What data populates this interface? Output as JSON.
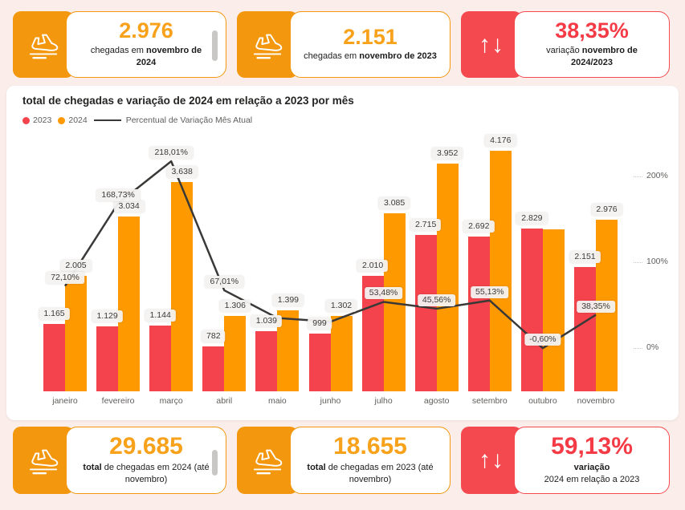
{
  "colors": {
    "page_bg": "#FBEEEA",
    "panel_bg": "#FFFFFF",
    "accent_orange": "#F2970E",
    "accent_red": "#F4494F",
    "number_orange": "#F8A11B",
    "number_red": "#F43B46",
    "bar_2023": "#F4434C",
    "bar_2024": "#FE9900",
    "line_color": "#3A3938"
  },
  "cards": {
    "top": [
      {
        "value": "2.976",
        "desc_normal": "chegadas em ",
        "desc_bold": "novembro de 2024",
        "theme": "orange",
        "icon": "plane-arrival",
        "scrollbar": true
      },
      {
        "value": "2.151",
        "desc_normal": "chegadas em ",
        "desc_bold": "novembro de 2023",
        "theme": "orange",
        "icon": "plane-arrival",
        "scrollbar": false
      },
      {
        "value": "38,35%",
        "desc_normal": "variação ",
        "desc_bold": "novembro de 2024/2023",
        "theme": "red",
        "icon": "up-down-arrows",
        "scrollbar": false
      }
    ],
    "bottom": [
      {
        "value": "29.685",
        "desc_bold": "total",
        "desc_normal": " de chegadas em 2024 (até novembro)",
        "theme": "orange",
        "icon": "plane-arrival",
        "scrollbar": true
      },
      {
        "value": "18.655",
        "desc_bold": "total",
        "desc_normal": " de chegadas em 2023 (até novembro)",
        "theme": "orange",
        "icon": "plane-arrival",
        "scrollbar": false
      },
      {
        "value": "59,13%",
        "desc_bold": "variação",
        "desc_normal": "2024 em relação a 2023",
        "theme": "red",
        "icon": "up-down-arrows",
        "scrollbar": false
      }
    ]
  },
  "chart_data": {
    "type": "combo-bar-line",
    "title": "total de chegadas e variação de 2024 em relação a 2023 por mês",
    "legend": [
      {
        "label": "2023",
        "marker": "dot",
        "color": "#F4434C"
      },
      {
        "label": "2024",
        "marker": "dot",
        "color": "#FE9900"
      },
      {
        "label": "Percentual de Variação Mês Atual",
        "marker": "line",
        "color": "#3A3938"
      }
    ],
    "categories": [
      "janeiro",
      "fevereiro",
      "março",
      "abril",
      "maio",
      "junho",
      "julho",
      "agosto",
      "setembro",
      "outubro",
      "novembro"
    ],
    "series": [
      {
        "name": "2023",
        "values": [
          1165,
          1129,
          1144,
          782,
          1039,
          999,
          2010,
          2715,
          2692,
          2829,
          2151
        ],
        "labels": [
          "1.165",
          "1.129",
          "1.144",
          "782",
          "1.039",
          "999",
          "2.010",
          "2.715",
          "2.692",
          "2.829",
          "2.151"
        ]
      },
      {
        "name": "2024",
        "values": [
          2005,
          3034,
          3638,
          1306,
          1399,
          1302,
          3085,
          3952,
          4176,
          2812,
          2976
        ],
        "labels": [
          "2.005",
          "3.034",
          "3.638",
          "1.306",
          "1.399",
          "1.302",
          "3.085",
          "3.952",
          "4.176",
          null,
          "2.976"
        ]
      }
    ],
    "line": {
      "name": "Percentual de Variação Mês Atual",
      "values": [
        72.1,
        168.73,
        218.01,
        67.01,
        34.65,
        30.33,
        53.48,
        45.56,
        55.13,
        -0.6,
        38.35
      ],
      "labels": [
        "72,10%",
        "168,73%",
        "218,01%",
        "67,01%",
        null,
        null,
        "53,48%",
        "45,56%",
        "55,13%",
        "-0,60%",
        "38,35%"
      ]
    },
    "y2_axis": {
      "position": "right",
      "ticks": [
        {
          "label": "0%",
          "value": 0
        },
        {
          "label": "100%",
          "value": 100
        },
        {
          "label": "200%",
          "value": 200
        }
      ]
    },
    "grid": "off",
    "legend_position": "top-left"
  }
}
